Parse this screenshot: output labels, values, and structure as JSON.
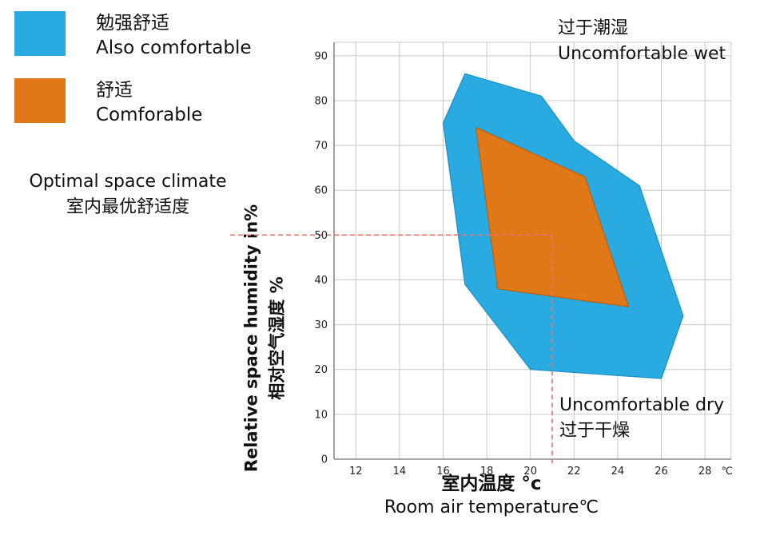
{
  "legend": {
    "items": [
      {
        "label_zh": "勉强舒适",
        "label_en": "Also comfortable",
        "color": "#29ABE2",
        "stroke": "#1B8FC4"
      },
      {
        "label_zh": "舒适",
        "label_en": "Comforable",
        "color": "#E07818",
        "stroke": "#B85E10"
      }
    ]
  },
  "annotations": {
    "optimal_en": "Optimal space climate",
    "optimal_zh": "室内最优舒适度",
    "wet_zh": "过于潮湿",
    "wet_en": "Uncomfortable wet",
    "dry_en": "Uncomfortable dry",
    "dry_zh": "过于干燥"
  },
  "axes": {
    "y_label_en": "Relative space humidity in%",
    "y_label_zh": "相对空气湿度 %",
    "x_label_zh": "室内温度 °c",
    "x_label_en": "Room air temperature℃"
  },
  "chart_data": {
    "type": "area",
    "title": "",
    "xlabel": "室内温度 °c / Room air temperature℃",
    "ylabel": "Relative space humidity in% / 相对空气湿度 %",
    "xlim": [
      11,
      29.2
    ],
    "ylim": [
      0,
      93
    ],
    "x_ticks": [
      12,
      14,
      16,
      18,
      20,
      22,
      24,
      26,
      28
    ],
    "x_unit": "℃",
    "y_ticks": [
      0,
      10,
      20,
      30,
      40,
      50,
      60,
      70,
      80,
      90
    ],
    "grid": true,
    "grid_color": "#c9c9c9",
    "axis_color": "#8a8a8a",
    "series": [
      {
        "name": "勉强舒适 Also comfortable",
        "color": "#29ABE2",
        "stroke": "#1B8FC4",
        "polygon": [
          [
            16,
            75
          ],
          [
            17,
            86
          ],
          [
            20.5,
            81
          ],
          [
            22,
            71
          ],
          [
            25,
            61
          ],
          [
            27,
            32
          ],
          [
            26,
            18
          ],
          [
            20,
            20
          ],
          [
            17,
            39
          ]
        ]
      },
      {
        "name": "舒适 Comforable",
        "color": "#E07818",
        "stroke": "#B85E10",
        "polygon": [
          [
            17.5,
            74
          ],
          [
            22.5,
            63
          ],
          [
            24.5,
            34
          ],
          [
            18.5,
            38
          ]
        ]
      }
    ],
    "reference_lines": {
      "humidity": 50,
      "temperature": 21,
      "color": "#E57373",
      "style": "dashed"
    }
  }
}
